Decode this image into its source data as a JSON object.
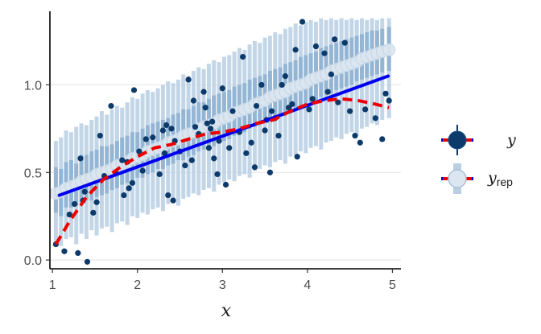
{
  "chart_data": {
    "type": "scatter",
    "title": "",
    "xlabel": "x",
    "ylabel": "",
    "xlim": [
      0.97,
      5.1
    ],
    "ylim": [
      -0.05,
      1.42
    ],
    "x_ticks": [
      "1",
      "2",
      "3",
      "4",
      "5"
    ],
    "y_ticks": [
      "0.0",
      "0.5",
      "1.0"
    ],
    "grid": "horizontal major",
    "legend_placement": "right",
    "legend": [
      {
        "label": "y",
        "subscript": ""
      },
      {
        "label": "y",
        "subscript": "rep"
      }
    ],
    "colors": {
      "observed": "#0b3a6b",
      "rep_interval": "#b9cfe3",
      "rep_inner": "#8fb2d1",
      "rep_point": "#dbe6f0",
      "fit_line": "#0000ee",
      "smooth_line": "#ee0000",
      "grid": "#ebebeb"
    },
    "series": [
      {
        "name": "y",
        "points": [
          [
            1.04,
            0.09
          ],
          [
            1.14,
            0.05
          ],
          [
            1.2,
            0.26
          ],
          [
            1.26,
            0.32
          ],
          [
            1.3,
            0.04
          ],
          [
            1.33,
            0.58
          ],
          [
            1.36,
            0.34
          ],
          [
            1.38,
            0.39
          ],
          [
            1.41,
            -0.01
          ],
          [
            1.48,
            0.27
          ],
          [
            1.52,
            0.33
          ],
          [
            1.56,
            0.71
          ],
          [
            1.61,
            0.48
          ],
          [
            1.69,
            0.88
          ],
          [
            1.74,
            0.5
          ],
          [
            1.82,
            0.57
          ],
          [
            1.84,
            0.37
          ],
          [
            1.88,
            0.56
          ],
          [
            1.9,
            0.41
          ],
          [
            1.94,
            0.44
          ],
          [
            1.96,
            0.97
          ],
          [
            2.02,
            0.62
          ],
          [
            2.06,
            0.51
          ],
          [
            2.1,
            0.69
          ],
          [
            2.18,
            0.7
          ],
          [
            2.26,
            0.49
          ],
          [
            2.3,
            0.74
          ],
          [
            2.32,
            0.61
          ],
          [
            2.34,
            0.77
          ],
          [
            2.36,
            0.37
          ],
          [
            2.4,
            0.75
          ],
          [
            2.42,
            0.34
          ],
          [
            2.44,
            0.68
          ],
          [
            2.5,
            0.62
          ],
          [
            2.56,
            0.54
          ],
          [
            2.6,
            1.03
          ],
          [
            2.64,
            0.57
          ],
          [
            2.66,
            0.91
          ],
          [
            2.68,
            0.76
          ],
          [
            2.72,
            0.72
          ],
          [
            2.78,
            0.96
          ],
          [
            2.8,
            0.87
          ],
          [
            2.82,
            0.78
          ],
          [
            2.84,
            0.64
          ],
          [
            2.86,
            0.75
          ],
          [
            2.88,
            0.79
          ],
          [
            2.9,
            0.58
          ],
          [
            2.94,
            0.49
          ],
          [
            2.96,
            0.68
          ],
          [
            3.0,
            0.98
          ],
          [
            3.04,
            0.43
          ],
          [
            3.08,
            0.64
          ],
          [
            3.12,
            0.85
          ],
          [
            3.2,
            0.73
          ],
          [
            3.24,
            1.16
          ],
          [
            3.28,
            0.61
          ],
          [
            3.34,
            0.67
          ],
          [
            3.38,
            0.53
          ],
          [
            3.4,
            0.88
          ],
          [
            3.46,
            1.0
          ],
          [
            3.5,
            0.74
          ],
          [
            3.52,
            0.8
          ],
          [
            3.56,
            0.5
          ],
          [
            3.58,
            0.85
          ],
          [
            3.62,
            0.81
          ],
          [
            3.66,
            0.71
          ],
          [
            3.7,
            1.0
          ],
          [
            3.74,
            1.05
          ],
          [
            3.78,
            0.87
          ],
          [
            3.82,
            0.89
          ],
          [
            3.86,
            1.2
          ],
          [
            3.88,
            0.59
          ],
          [
            3.94,
            1.36
          ],
          [
            4.02,
            0.86
          ],
          [
            4.06,
            0.92
          ],
          [
            4.1,
            1.22
          ],
          [
            4.2,
            1.18
          ],
          [
            4.24,
            0.96
          ],
          [
            4.28,
            1.06
          ],
          [
            4.32,
            1.26
          ],
          [
            4.36,
            0.9
          ],
          [
            4.44,
            1.24
          ],
          [
            4.5,
            0.85
          ],
          [
            4.56,
            0.71
          ],
          [
            4.62,
            0.67
          ],
          [
            4.68,
            0.86
          ],
          [
            4.8,
            0.81
          ],
          [
            4.88,
            0.69
          ],
          [
            4.92,
            0.95
          ],
          [
            4.96,
            0.91
          ]
        ]
      },
      {
        "name": "y",
        "subscript": "rep",
        "intervals": [
          [
            1.04,
            0.1,
            0.68,
            0.27,
            0.53,
            0.38
          ],
          [
            1.1,
            0.08,
            0.7,
            0.25,
            0.52,
            0.39
          ],
          [
            1.16,
            0.12,
            0.74,
            0.3,
            0.56,
            0.41
          ],
          [
            1.22,
            0.13,
            0.73,
            0.3,
            0.57,
            0.42
          ],
          [
            1.28,
            0.09,
            0.76,
            0.31,
            0.55,
            0.43
          ],
          [
            1.34,
            0.15,
            0.78,
            0.33,
            0.6,
            0.45
          ],
          [
            1.4,
            0.12,
            0.77,
            0.34,
            0.6,
            0.46
          ],
          [
            1.46,
            0.17,
            0.8,
            0.34,
            0.62,
            0.47
          ],
          [
            1.52,
            0.14,
            0.82,
            0.36,
            0.63,
            0.49
          ],
          [
            1.58,
            0.18,
            0.85,
            0.37,
            0.65,
            0.5
          ],
          [
            1.64,
            0.19,
            0.83,
            0.38,
            0.65,
            0.51
          ],
          [
            1.7,
            0.16,
            0.86,
            0.4,
            0.66,
            0.52
          ],
          [
            1.76,
            0.21,
            0.88,
            0.41,
            0.68,
            0.54
          ],
          [
            1.82,
            0.22,
            0.87,
            0.43,
            0.7,
            0.55
          ],
          [
            1.88,
            0.2,
            0.9,
            0.44,
            0.71,
            0.56
          ],
          [
            1.94,
            0.25,
            0.93,
            0.45,
            0.73,
            0.58
          ],
          [
            2.0,
            0.24,
            0.92,
            0.47,
            0.73,
            0.59
          ],
          [
            2.06,
            0.27,
            0.95,
            0.47,
            0.75,
            0.6
          ],
          [
            2.12,
            0.26,
            0.97,
            0.49,
            0.77,
            0.62
          ],
          [
            2.18,
            0.29,
            0.96,
            0.5,
            0.78,
            0.63
          ],
          [
            2.24,
            0.3,
            0.98,
            0.52,
            0.79,
            0.64
          ],
          [
            2.3,
            0.28,
            1.0,
            0.52,
            0.8,
            0.65
          ],
          [
            2.36,
            0.32,
            1.02,
            0.54,
            0.81,
            0.67
          ],
          [
            2.42,
            0.33,
            1.01,
            0.55,
            0.83,
            0.68
          ],
          [
            2.48,
            0.31,
            1.03,
            0.57,
            0.84,
            0.69
          ],
          [
            2.54,
            0.35,
            1.06,
            0.57,
            0.86,
            0.71
          ],
          [
            2.6,
            0.36,
            1.05,
            0.59,
            0.86,
            0.72
          ],
          [
            2.66,
            0.38,
            1.08,
            0.6,
            0.88,
            0.73
          ],
          [
            2.72,
            0.37,
            1.1,
            0.62,
            0.9,
            0.75
          ],
          [
            2.78,
            0.4,
            1.09,
            0.63,
            0.9,
            0.76
          ],
          [
            2.84,
            0.41,
            1.12,
            0.64,
            0.92,
            0.77
          ],
          [
            2.9,
            0.39,
            1.14,
            0.65,
            0.94,
            0.78
          ],
          [
            2.96,
            0.43,
            1.13,
            0.67,
            0.95,
            0.8
          ],
          [
            3.02,
            0.44,
            1.16,
            0.68,
            0.96,
            0.81
          ],
          [
            3.08,
            0.46,
            1.17,
            0.69,
            0.97,
            0.82
          ],
          [
            3.14,
            0.45,
            1.19,
            0.71,
            0.99,
            0.84
          ],
          [
            3.2,
            0.48,
            1.21,
            0.72,
            1.0,
            0.85
          ],
          [
            3.26,
            0.49,
            1.2,
            0.73,
            1.01,
            0.86
          ],
          [
            3.32,
            0.47,
            1.23,
            0.75,
            1.03,
            0.87
          ],
          [
            3.38,
            0.51,
            1.25,
            0.76,
            1.04,
            0.89
          ],
          [
            3.44,
            0.52,
            1.24,
            0.77,
            1.05,
            0.9
          ],
          [
            3.5,
            0.54,
            1.27,
            0.79,
            1.06,
            0.91
          ],
          [
            3.56,
            0.53,
            1.28,
            0.8,
            1.08,
            0.93
          ],
          [
            3.62,
            0.56,
            1.3,
            0.81,
            1.09,
            0.94
          ],
          [
            3.68,
            0.57,
            1.29,
            0.82,
            1.1,
            0.95
          ],
          [
            3.74,
            0.55,
            1.32,
            0.84,
            1.12,
            0.96
          ],
          [
            3.8,
            0.59,
            1.33,
            0.85,
            1.13,
            0.98
          ],
          [
            3.86,
            0.6,
            1.35,
            0.86,
            1.14,
            0.99
          ],
          [
            3.92,
            0.62,
            1.34,
            0.88,
            1.16,
            1.0
          ],
          [
            3.98,
            0.61,
            1.36,
            0.89,
            1.17,
            1.01
          ],
          [
            4.04,
            0.64,
            1.37,
            0.9,
            1.18,
            1.03
          ],
          [
            4.1,
            0.65,
            1.36,
            0.91,
            1.19,
            1.04
          ],
          [
            4.16,
            0.63,
            1.38,
            0.93,
            1.21,
            1.05
          ],
          [
            4.22,
            0.67,
            1.37,
            0.94,
            1.22,
            1.06
          ],
          [
            4.28,
            0.68,
            1.38,
            0.95,
            1.23,
            1.08
          ],
          [
            4.34,
            0.7,
            1.37,
            0.97,
            1.24,
            1.09
          ],
          [
            4.4,
            0.69,
            1.38,
            0.98,
            1.25,
            1.1
          ],
          [
            4.46,
            0.72,
            1.37,
            0.99,
            1.26,
            1.11
          ],
          [
            4.52,
            0.73,
            1.38,
            1.0,
            1.27,
            1.12
          ],
          [
            4.58,
            0.71,
            1.37,
            1.02,
            1.28,
            1.13
          ],
          [
            4.64,
            0.75,
            1.38,
            1.03,
            1.29,
            1.15
          ],
          [
            4.7,
            0.76,
            1.37,
            1.04,
            1.3,
            1.16
          ],
          [
            4.76,
            0.78,
            1.38,
            1.05,
            1.31,
            1.17
          ],
          [
            4.82,
            0.77,
            1.37,
            1.06,
            1.31,
            1.18
          ],
          [
            4.88,
            0.8,
            1.38,
            1.07,
            1.32,
            1.19
          ],
          [
            4.96,
            0.81,
            1.38,
            1.08,
            1.33,
            1.2
          ]
        ]
      }
    ],
    "fit_line": [
      [
        1.08,
        0.37
      ],
      [
        4.95,
        1.05
      ]
    ],
    "smooth_line": [
      [
        1.04,
        0.09
      ],
      [
        1.2,
        0.22
      ],
      [
        1.4,
        0.36
      ],
      [
        1.6,
        0.46
      ],
      [
        1.8,
        0.53
      ],
      [
        2.0,
        0.59
      ],
      [
        2.2,
        0.64
      ],
      [
        2.4,
        0.66
      ],
      [
        2.6,
        0.69
      ],
      [
        2.8,
        0.72
      ],
      [
        3.0,
        0.73
      ],
      [
        3.2,
        0.75
      ],
      [
        3.4,
        0.78
      ],
      [
        3.6,
        0.8
      ],
      [
        3.8,
        0.85
      ],
      [
        4.0,
        0.89
      ],
      [
        4.2,
        0.91
      ],
      [
        4.4,
        0.92
      ],
      [
        4.6,
        0.91
      ],
      [
        4.8,
        0.89
      ],
      [
        4.96,
        0.87
      ]
    ]
  }
}
